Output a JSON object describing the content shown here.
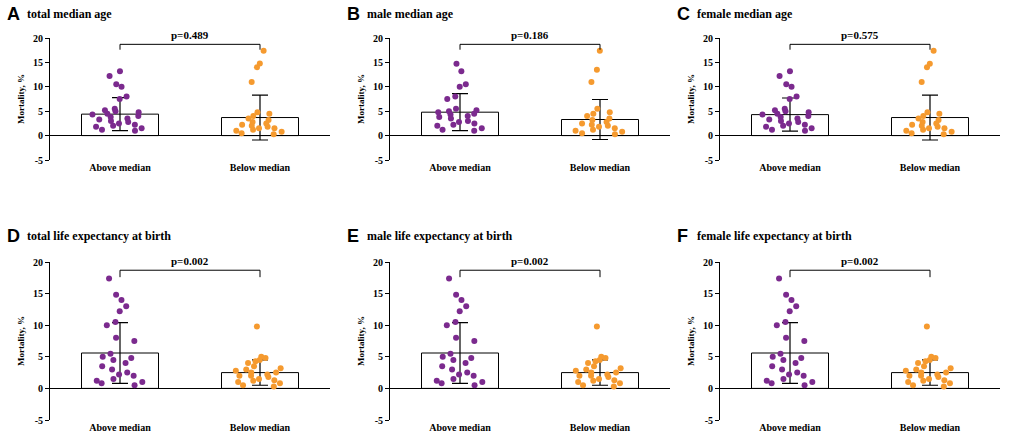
{
  "chart_data": [
    {
      "type": "bar",
      "panel_label": "A",
      "title": "total median age",
      "ylabel": "Mortality, %",
      "categories": [
        "Above median",
        "Below median"
      ],
      "values": [
        4.4,
        3.7
      ],
      "sd": [
        3.4,
        4.6
      ],
      "points": [
        [
          13.2,
          12.2,
          10.5,
          10.0,
          8.0,
          7.5,
          5.5,
          5.2,
          5.0,
          4.8,
          4.5,
          4.3,
          4.0,
          3.8,
          3.5,
          3.3,
          3.0,
          2.8,
          2.5,
          2.2,
          2.0,
          1.8,
          1.5,
          1.2,
          1.0
        ],
        [
          17.4,
          14.8,
          14.0,
          11.0,
          4.8,
          4.5,
          4.0,
          3.5,
          3.2,
          2.8,
          2.5,
          2.2,
          2.0,
          1.8,
          1.5,
          1.5,
          1.2,
          1.0,
          0.8,
          0.5,
          0.3
        ]
      ],
      "colors": [
        "#7b2a8e",
        "#f59a2f"
      ],
      "annotation": "p=0.489",
      "ylim": [
        -5,
        20
      ],
      "yticks": [
        -5,
        0,
        5,
        10,
        15,
        20
      ],
      "grid": false
    },
    {
      "type": "bar",
      "panel_label": "B",
      "title": "male median age",
      "ylabel": "Mortality, %",
      "categories": [
        "Above median",
        "Below median"
      ],
      "values": [
        4.8,
        3.3
      ],
      "sd": [
        3.8,
        4.1
      ],
      "points": [
        [
          14.7,
          13.2,
          10.5,
          10.0,
          8.0,
          7.5,
          5.5,
          5.2,
          5.0,
          4.8,
          4.5,
          4.3,
          4.0,
          3.8,
          3.5,
          3.0,
          2.8,
          2.5,
          2.2,
          2.0,
          1.5,
          1.2,
          1.0
        ],
        [
          17.4,
          13.5,
          11.0,
          5.5,
          4.8,
          4.5,
          4.0,
          3.5,
          3.2,
          2.8,
          2.5,
          2.2,
          2.0,
          1.8,
          1.5,
          1.2,
          1.0,
          0.8,
          0.5,
          0.3
        ]
      ],
      "colors": [
        "#7b2a8e",
        "#f59a2f"
      ],
      "annotation": "p=0.186",
      "ylim": [
        -5,
        20
      ],
      "yticks": [
        -5,
        0,
        5,
        10,
        15,
        20
      ],
      "grid": false
    },
    {
      "type": "bar",
      "panel_label": "C",
      "title": "female median age",
      "ylabel": "Mortality, %",
      "categories": [
        "Above median",
        "Below median"
      ],
      "values": [
        4.3,
        3.7
      ],
      "sd": [
        3.4,
        4.6
      ],
      "points": [
        [
          13.2,
          12.2,
          10.5,
          10.0,
          8.0,
          7.5,
          5.5,
          5.2,
          5.0,
          4.8,
          4.5,
          4.3,
          4.0,
          3.8,
          3.5,
          3.3,
          3.0,
          2.8,
          2.5,
          2.2,
          2.0,
          1.8,
          1.5,
          1.2,
          1.0
        ],
        [
          17.4,
          14.7,
          14.0,
          11.0,
          4.8,
          4.5,
          4.0,
          3.5,
          3.2,
          2.8,
          2.5,
          2.2,
          2.0,
          1.8,
          1.5,
          1.5,
          1.2,
          1.0,
          0.8,
          0.5,
          0.3
        ]
      ],
      "colors": [
        "#7b2a8e",
        "#f59a2f"
      ],
      "annotation": "p=0.575",
      "ylim": [
        -5,
        20
      ],
      "yticks": [
        -5,
        0,
        5,
        10,
        15,
        20
      ],
      "grid": false
    },
    {
      "type": "bar",
      "panel_label": "D",
      "title": "total life expectancy at birth",
      "ylabel": "Mortality, %",
      "categories": [
        "Above median",
        "Below median"
      ],
      "values": [
        5.6,
        2.5
      ],
      "sd": [
        4.8,
        2.0
      ],
      "points": [
        [
          17.4,
          14.8,
          14.0,
          13.0,
          12.2,
          10.5,
          10.0,
          8.0,
          7.5,
          5.5,
          5.0,
          4.8,
          4.5,
          4.0,
          3.5,
          3.0,
          2.5,
          2.2,
          2.0,
          1.5,
          1.2,
          1.0,
          0.8,
          0.5
        ],
        [
          9.8,
          5.0,
          4.8,
          4.5,
          4.3,
          4.0,
          3.5,
          3.2,
          3.0,
          2.8,
          2.5,
          2.5,
          2.2,
          2.0,
          2.0,
          1.8,
          1.5,
          1.3,
          1.2,
          1.0,
          0.8,
          0.5,
          0.3
        ]
      ],
      "colors": [
        "#7b2a8e",
        "#f59a2f"
      ],
      "annotation": "p=0.002",
      "ylim": [
        -5,
        20
      ],
      "yticks": [
        -5,
        0,
        5,
        10,
        15,
        20
      ],
      "grid": false
    },
    {
      "type": "bar",
      "panel_label": "E",
      "title": "male life expectancy at birth",
      "ylabel": "Mortality, %",
      "categories": [
        "Above median",
        "Below median"
      ],
      "values": [
        5.6,
        2.5
      ],
      "sd": [
        4.8,
        2.0
      ],
      "points": [
        [
          17.4,
          14.8,
          14.0,
          13.0,
          12.2,
          10.5,
          10.0,
          8.0,
          7.5,
          5.5,
          5.0,
          4.8,
          4.5,
          4.0,
          3.5,
          3.0,
          2.5,
          2.2,
          2.0,
          1.5,
          1.2,
          1.0,
          0.8,
          0.5
        ],
        [
          9.8,
          5.0,
          4.8,
          4.5,
          4.3,
          4.0,
          3.5,
          3.2,
          3.0,
          2.8,
          2.5,
          2.5,
          2.2,
          2.0,
          2.0,
          1.8,
          1.5,
          1.3,
          1.2,
          1.0,
          0.8,
          0.5,
          0.3
        ]
      ],
      "colors": [
        "#7b2a8e",
        "#f59a2f"
      ],
      "annotation": "p=0.002",
      "ylim": [
        -5,
        20
      ],
      "yticks": [
        -5,
        0,
        5,
        10,
        15,
        20
      ],
      "grid": false
    },
    {
      "type": "bar",
      "panel_label": "F",
      "title": "female life expectancy at birth",
      "ylabel": "Mortality, %",
      "categories": [
        "Above median",
        "Below median"
      ],
      "values": [
        5.6,
        2.5
      ],
      "sd": [
        4.8,
        2.0
      ],
      "points": [
        [
          17.4,
          14.8,
          14.0,
          13.0,
          12.2,
          10.5,
          10.0,
          8.0,
          7.5,
          5.5,
          5.0,
          4.8,
          4.5,
          4.0,
          3.5,
          3.0,
          2.5,
          2.2,
          2.0,
          1.5,
          1.2,
          1.0,
          0.8,
          0.5
        ],
        [
          9.8,
          5.0,
          4.8,
          4.5,
          4.3,
          4.0,
          3.5,
          3.2,
          3.0,
          2.8,
          2.5,
          2.5,
          2.2,
          2.0,
          2.0,
          1.8,
          1.5,
          1.3,
          1.2,
          1.0,
          0.8,
          0.5,
          0.3
        ]
      ],
      "colors": [
        "#7b2a8e",
        "#f59a2f"
      ],
      "annotation": "p=0.002",
      "ylim": [
        -5,
        20
      ],
      "yticks": [
        -5,
        0,
        5,
        10,
        15,
        20
      ],
      "grid": false
    }
  ]
}
